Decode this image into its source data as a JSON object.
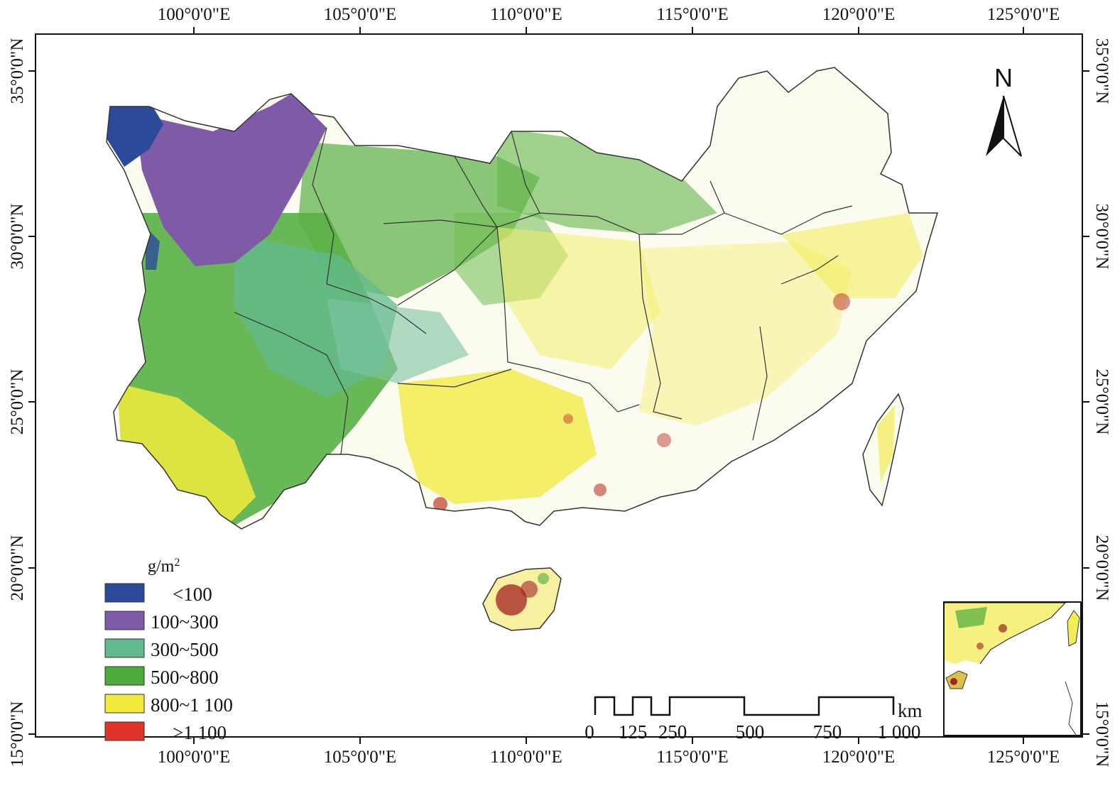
{
  "axes": {
    "top_lon_labels": [
      "100°0'0\"E",
      "105°0'0\"E",
      "110°0'0\"E",
      "115°0'0\"E",
      "120°0'0\"E",
      "125°0'0\"E"
    ],
    "bottom_lon_labels": [
      "100°0'0\"E",
      "105°0'0\"E",
      "110°0'0\"E",
      "115°0'0\"E",
      "120°0'0\"E",
      "125°0'0\"E"
    ],
    "left_lat_labels": [
      "35°0'0\"N",
      "30°0'0\"N",
      "25°0'0\"N",
      "20°0'0\"N",
      "15°0'0\"N"
    ],
    "right_lat_labels": [
      "35°0'0\"N",
      "30°0'0\"N",
      "25°0'0\"N",
      "20°0'0\"N",
      "15°0'0\"N"
    ]
  },
  "north_arrow": {
    "letter": "N",
    "icon": "north-arrow-icon"
  },
  "legend": {
    "unit": "g/m",
    "unit_sup": "2",
    "items": [
      {
        "label": "<100",
        "color": "#2b4a9a"
      },
      {
        "label": "100~300",
        "color": "#7f5aa6"
      },
      {
        "label": "300~500",
        "color": "#62b98d"
      },
      {
        "label": "500~800",
        "color": "#4fab3c"
      },
      {
        "label": "800~1 100",
        "color": "#f2ea3b"
      },
      {
        "label": ">1 100",
        "color": "#e0342b"
      }
    ]
  },
  "scale_bar": {
    "labels": [
      "0",
      "125",
      "250",
      "500",
      "750",
      "1 000"
    ],
    "unit": "km"
  },
  "colors": {
    "boundary": "#333333",
    "frame": "#111111"
  }
}
